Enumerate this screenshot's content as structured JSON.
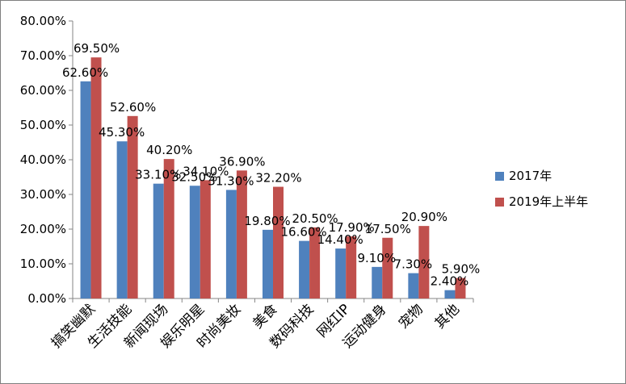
{
  "chart_data": {
    "type": "bar",
    "title": "",
    "xlabel": "",
    "ylabel": "",
    "ylim": [
      0,
      0.8
    ],
    "yticks": [
      "0.00%",
      "10.00%",
      "20.00%",
      "30.00%",
      "40.00%",
      "50.00%",
      "60.00%",
      "70.00%",
      "80.00%"
    ],
    "grid": false,
    "legend_position": "right",
    "categories": [
      "搞笑幽默",
      "生活技能",
      "新闻现场",
      "娱乐明星",
      "时尚美妆",
      "美食",
      "数码科技",
      "网红IP",
      "运动健身",
      "宠物",
      "其他"
    ],
    "series": [
      {
        "name": "2017年",
        "color": "#4f81bd",
        "values": [
          0.626,
          0.453,
          0.331,
          0.325,
          0.313,
          0.198,
          0.166,
          0.144,
          0.091,
          0.073,
          0.024
        ],
        "labels": [
          "62.60%",
          "45.30%",
          "33.10%",
          "32.50%",
          "31.30%",
          "19.80%",
          "16.60%",
          "14.40%",
          "9.10%",
          "7.30%",
          "2.40%"
        ]
      },
      {
        "name": "2019年上半年",
        "color": "#c0504d",
        "values": [
          0.695,
          0.526,
          0.402,
          0.341,
          0.369,
          0.322,
          0.205,
          0.179,
          0.175,
          0.209,
          0.059
        ],
        "labels": [
          "69.50%",
          "52.60%",
          "40.20%",
          "34.10%",
          "36.90%",
          "32.20%",
          "20.50%",
          "17.90%",
          "17.50%",
          "20.90%",
          "5.90%"
        ]
      }
    ]
  }
}
